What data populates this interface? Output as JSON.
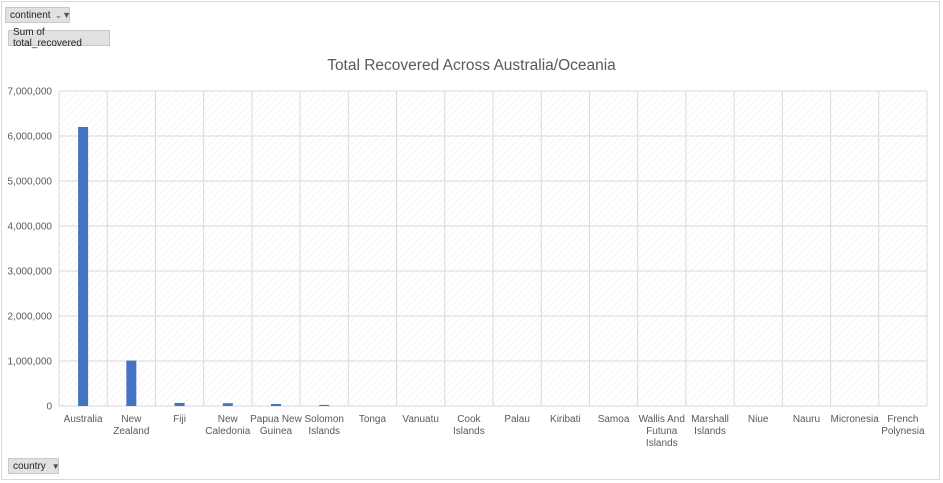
{
  "pivot": {
    "filter_field": "continent",
    "value_field": "Sum of total_recovered",
    "axis_field": "country"
  },
  "colors": {
    "bar": "#4472c4",
    "grid": "#d9d9d9",
    "text": "#595959"
  },
  "chart_data": {
    "type": "bar",
    "title": "Total Recovered Across Australia/Oceania",
    "xlabel": "",
    "ylabel": "",
    "ylim": [
      0,
      7000000
    ],
    "yticks": [
      "0",
      "1,000,000",
      "2,000,000",
      "3,000,000",
      "4,000,000",
      "5,000,000",
      "6,000,000",
      "7,000,000"
    ],
    "grid": true,
    "categories": [
      "Australia",
      "New Zealand",
      "Fiji",
      "New Caledonia",
      "Papua New Guinea",
      "Solomon Islands",
      "Tonga",
      "Vanuatu",
      "Cook Islands",
      "Palau",
      "Kiribati",
      "Samoa",
      "Wallis And Futuna Islands",
      "Marshall Islands",
      "Niue",
      "Nauru",
      "Micronesia",
      "French Polynesia"
    ],
    "category_lines": [
      [
        "Australia"
      ],
      [
        "New",
        "Zealand"
      ],
      [
        "Fiji"
      ],
      [
        "New",
        "Caledonia"
      ],
      [
        "Papua New",
        "Guinea"
      ],
      [
        "Solomon",
        "Islands"
      ],
      [
        "Tonga"
      ],
      [
        "Vanuatu"
      ],
      [
        "Cook",
        "Islands"
      ],
      [
        "Palau"
      ],
      [
        "Kiribati"
      ],
      [
        "Samoa"
      ],
      [
        "Wallis And",
        "Futuna",
        "Islands"
      ],
      [
        "Marshall",
        "Islands"
      ],
      [
        "Niue"
      ],
      [
        "Nauru"
      ],
      [
        "Micronesia"
      ],
      [
        "French",
        "Polynesia"
      ]
    ],
    "values": [
      6200000,
      1010000,
      68000,
      62000,
      45000,
      25000,
      0,
      0,
      0,
      0,
      0,
      0,
      0,
      0,
      0,
      0,
      0,
      0
    ]
  }
}
